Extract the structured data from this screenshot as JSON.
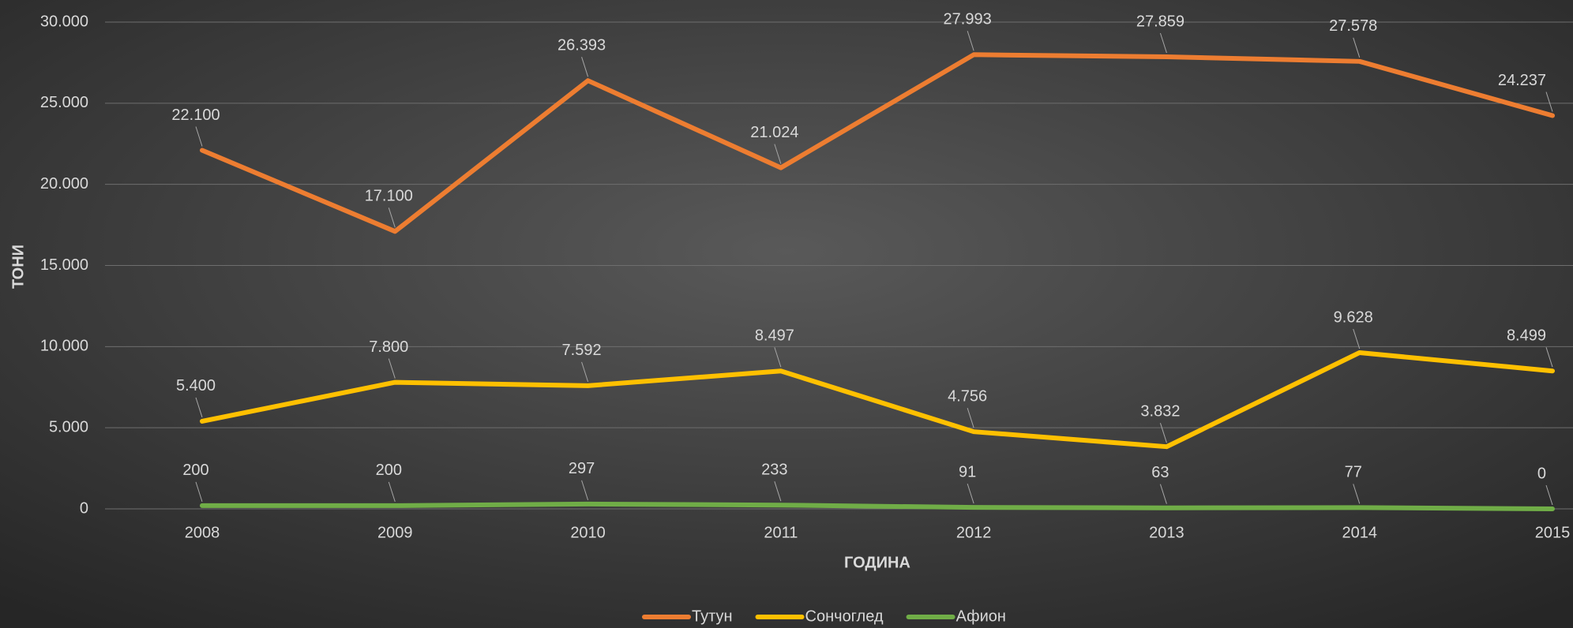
{
  "chart_data": {
    "type": "line",
    "y_label": "ТОНИ",
    "x_label": "ГОДИНА",
    "categories": [
      "2008",
      "2009",
      "2010",
      "2011",
      "2012",
      "2013",
      "2014",
      "2015"
    ],
    "series": [
      {
        "name": "Тутун",
        "color": "#ed7d31",
        "values": [
          22100,
          17100,
          26393,
          21024,
          27993,
          27859,
          27578,
          24237
        ],
        "value_labels": [
          "22.100",
          "17.100",
          "26.393",
          "21.024",
          "27.993",
          "27.859",
          "27.578",
          "24.237"
        ]
      },
      {
        "name": "Сончоглед",
        "color": "#ffc000",
        "values": [
          5400,
          7800,
          7592,
          8497,
          4756,
          3832,
          9628,
          8499
        ],
        "value_labels": [
          "5.400",
          "7.800",
          "7.592",
          "8.497",
          "4.756",
          "3.832",
          "9.628",
          "8.499"
        ]
      },
      {
        "name": "Афион",
        "color": "#70ad47",
        "values": [
          200,
          200,
          297,
          233,
          91,
          63,
          77,
          0
        ]
      }
    ],
    "ylim": [
      0,
      30000
    ],
    "yticks": [
      0,
      {
        "value": 5000,
        "label": "5.000"
      },
      {
        "value": 10000,
        "label": "10.000"
      },
      {
        "value": 15000,
        "label": "15.000"
      },
      {
        "value": 20000,
        "label": "20.000"
      },
      {
        "value": 25000,
        "label": "25.000"
      },
      {
        "value": 30000,
        "label": "30.000"
      }
    ],
    "grid": true,
    "legend": "bottom"
  }
}
